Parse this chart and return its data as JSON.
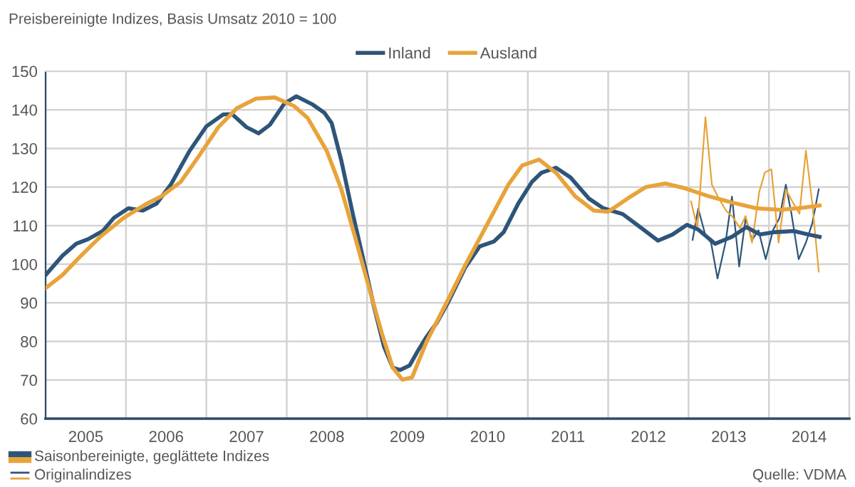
{
  "chart_data": {
    "type": "line",
    "title": "Preisbereinigte Indizes, Basis Umsatz 2010 = 100",
    "xlim": [
      2005,
      2015
    ],
    "xticks": [
      {
        "value": 2005,
        "label": null
      },
      {
        "value": 2005.5,
        "label": "2005"
      },
      {
        "value": 2006,
        "label": null
      },
      {
        "value": 2006.5,
        "label": "2006"
      },
      {
        "value": 2007,
        "label": null
      },
      {
        "value": 2007.5,
        "label": "2007"
      },
      {
        "value": 2008,
        "label": null
      },
      {
        "value": 2008.5,
        "label": "2008"
      },
      {
        "value": 2009,
        "label": null
      },
      {
        "value": 2009.5,
        "label": "2009"
      },
      {
        "value": 2010,
        "label": null
      },
      {
        "value": 2010.5,
        "label": "2010"
      },
      {
        "value": 2011,
        "label": null
      },
      {
        "value": 2011.5,
        "label": "2011"
      },
      {
        "value": 2012,
        "label": null
      },
      {
        "value": 2012.5,
        "label": "2012"
      },
      {
        "value": 2013,
        "label": null
      },
      {
        "value": 2013.5,
        "label": "2013"
      },
      {
        "value": 2014,
        "label": null
      },
      {
        "value": 2014.5,
        "label": "2014"
      },
      {
        "value": 2015,
        "label": null
      }
    ],
    "ylim": [
      60,
      150
    ],
    "yticks": [
      60,
      70,
      80,
      90,
      100,
      110,
      120,
      130,
      140,
      150
    ],
    "grid": true,
    "legend": "top",
    "marker": "none",
    "line_style": "solid",
    "series": [
      {
        "name": "Inland",
        "color": "#2e5579",
        "x": [
          2005.0,
          2005.21,
          2005.38,
          2005.53,
          2005.71,
          2005.85,
          2006.03,
          2006.21,
          2006.38,
          2006.56,
          2006.79,
          2007.0,
          2007.21,
          2007.32,
          2007.5,
          2007.65,
          2007.79,
          2007.97,
          2008.12,
          2008.32,
          2008.47,
          2008.56,
          2008.68,
          2008.82,
          2008.97,
          2009.09,
          2009.21,
          2009.32,
          2009.41,
          2009.53,
          2009.63,
          2009.74,
          2009.87,
          2010.0,
          2010.22,
          2010.4,
          2010.58,
          2010.7,
          2010.88,
          2011.05,
          2011.17,
          2011.35,
          2011.53,
          2011.76,
          2011.94,
          2012.18,
          2012.36,
          2012.62,
          2012.8,
          2012.98,
          2013.12,
          2013.33,
          2013.54,
          2013.72,
          2013.89,
          2014.07,
          2014.31,
          2014.49,
          2014.63
        ],
        "values": [
          97.2,
          102.2,
          105.3,
          106.5,
          108.6,
          112,
          114.5,
          113.9,
          115.7,
          120.7,
          129.3,
          135.7,
          138.8,
          138.9,
          135.5,
          133.9,
          136.1,
          141.6,
          143.5,
          141.4,
          139.2,
          136.5,
          126.8,
          113.3,
          99.7,
          88.6,
          78.7,
          73.2,
          72.6,
          73.8,
          77.5,
          81.2,
          84.9,
          89.8,
          99.1,
          104.6,
          105.9,
          108.3,
          115.7,
          121.3,
          123.7,
          125.0,
          122.5,
          117,
          114.5,
          113,
          110.2,
          106.1,
          107.7,
          110.2,
          109,
          105.3,
          107.1,
          109.6,
          107.7,
          108.3,
          108.6,
          107.7,
          107.1
        ]
      },
      {
        "name": "Ausland",
        "color": "#e8a33a",
        "x": [
          2005.0,
          2005.21,
          2005.44,
          2005.68,
          2005.97,
          2006.26,
          2006.44,
          2006.68,
          2006.91,
          2007.15,
          2007.38,
          2007.62,
          2007.85,
          2008.09,
          2008.26,
          2008.5,
          2008.68,
          2008.85,
          2009.03,
          2009.18,
          2009.32,
          2009.44,
          2009.56,
          2009.74,
          2010.0,
          2010.22,
          2010.46,
          2010.76,
          2010.93,
          2011.14,
          2011.35,
          2011.59,
          2011.82,
          2012.0,
          2012.24,
          2012.47,
          2012.71,
          2012.95,
          2013.25,
          2013.54,
          2013.84,
          2014.14,
          2014.44,
          2014.63
        ],
        "values": [
          93.8,
          97.2,
          102.2,
          107.1,
          112,
          115.7,
          117.6,
          121.3,
          128.1,
          135.5,
          140.4,
          142.9,
          143.2,
          141,
          137.9,
          129.3,
          119.4,
          107.1,
          93.5,
          82.4,
          73.2,
          70.1,
          70.7,
          79.9,
          90.5,
          99.7,
          109,
          120.7,
          125.6,
          127.1,
          123.7,
          117.6,
          113.9,
          113.6,
          117,
          120,
          120.9,
          119.7,
          117.6,
          116,
          114.5,
          114.1,
          114.7,
          115.2
        ]
      },
      {
        "color": "#2e5579",
        "x": [
          2013.05,
          2013.12,
          2013.21,
          2013.28,
          2013.36,
          2013.46,
          2013.54,
          2013.63,
          2013.71,
          2013.79,
          2013.87,
          2013.96,
          2014.05,
          2014.13,
          2014.21,
          2014.28,
          2014.37,
          2014.46,
          2014.54,
          2014.62
        ],
        "values": [
          106.3,
          114.4,
          107.5,
          105.6,
          96.3,
          105.6,
          117.5,
          99.4,
          111.9,
          106.3,
          108.8,
          101.3,
          108.8,
          111.9,
          120.6,
          113.1,
          101.3,
          105.6,
          110.6,
          119.4
        ]
      },
      {
        "color": "#e8a33a",
        "x": [
          2013.03,
          2013.11,
          2013.21,
          2013.29,
          2013.38,
          2013.47,
          2013.54,
          2013.64,
          2013.71,
          2013.79,
          2013.88,
          2013.95,
          2014.03,
          2014.12,
          2014.21,
          2014.29,
          2014.38,
          2014.46,
          2014.54,
          2014.62
        ],
        "values": [
          116.3,
          109.4,
          138.1,
          120.6,
          116.9,
          113.8,
          112.5,
          109.4,
          112.5,
          105.6,
          118.8,
          123.8,
          124.6,
          105.6,
          119.4,
          116.3,
          113.1,
          129.4,
          115.6,
          98.1
        ]
      }
    ],
    "annotations": [
      "Saisonbereinigte, geglättete Indizes",
      "Originalindizes",
      "Quelle: VDMA"
    ]
  }
}
